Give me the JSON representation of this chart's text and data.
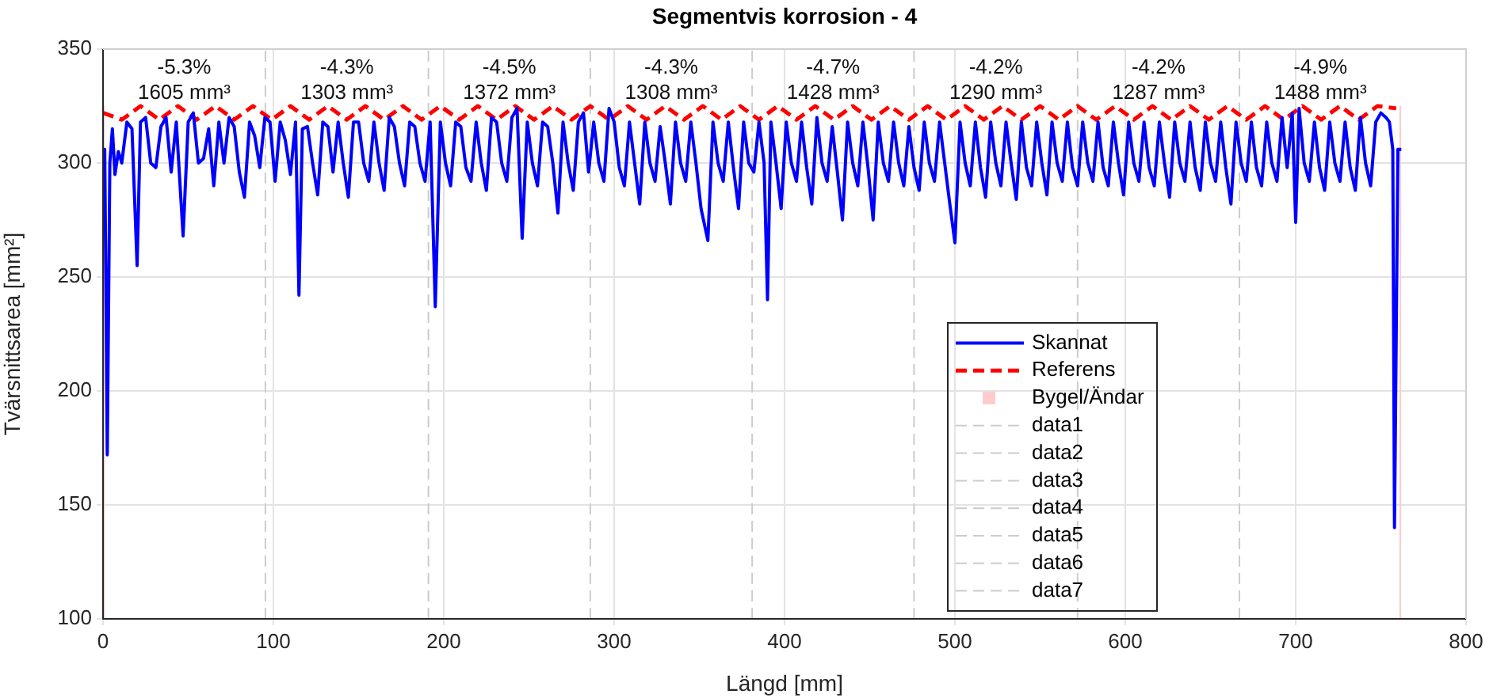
{
  "chart_data": {
    "type": "line",
    "title": "Segmentvis korrosion - 4",
    "xlabel": "Längd [mm]",
    "ylabel": "Tvärsnittsarea [mm²]",
    "xlim": [
      0,
      800
    ],
    "xticks": [
      0,
      100,
      200,
      300,
      400,
      500,
      600,
      700,
      800
    ],
    "ylim": [
      100,
      350
    ],
    "yticks": [
      100,
      150,
      200,
      250,
      300,
      350
    ],
    "grid": true,
    "legend": "bottom right",
    "series": [
      {
        "name": "Skannat",
        "color": "#0000ff",
        "line_style": "solid",
        "x": [
          0,
          1,
          2.5,
          4,
          5.5,
          7,
          9,
          11,
          14,
          17,
          20,
          22,
          25,
          28,
          31,
          34,
          37,
          40,
          43,
          47,
          50,
          53,
          56,
          59,
          62,
          65,
          68,
          71,
          74,
          77,
          80,
          83,
          86,
          89,
          92,
          95,
          98,
          101,
          104,
          107,
          110,
          113,
          115,
          117,
          120,
          123,
          126,
          129,
          132,
          135,
          138,
          141,
          144,
          147,
          150,
          153,
          156,
          159,
          162,
          165,
          168,
          171,
          174,
          177,
          180,
          183,
          186,
          189,
          192,
          195,
          198,
          201,
          204,
          207,
          210,
          213,
          216,
          219,
          222,
          225,
          228,
          231,
          234,
          237,
          240,
          243,
          246,
          249,
          252,
          255,
          258,
          261,
          264,
          267,
          270,
          273,
          276,
          279,
          282,
          285,
          288,
          291,
          294,
          297,
          300,
          303,
          306,
          309,
          312,
          315,
          318,
          321,
          324,
          327,
          330,
          333,
          336,
          339,
          342,
          345,
          348,
          351,
          355,
          358,
          361,
          364,
          367,
          370,
          373,
          376,
          379,
          382,
          385,
          388,
          390,
          392,
          395,
          398,
          401,
          404,
          407,
          410,
          413,
          416,
          419,
          422,
          425,
          428,
          431,
          434,
          437,
          440,
          443,
          446,
          449,
          452,
          455,
          458,
          461,
          464,
          467,
          470,
          473,
          476,
          479,
          482,
          485,
          488,
          491,
          494,
          497,
          500,
          503,
          506,
          509,
          512,
          515,
          518,
          521,
          524,
          527,
          530,
          533,
          536,
          539,
          542,
          545,
          548,
          551,
          554,
          557,
          560,
          563,
          566,
          569,
          572,
          575,
          578,
          581,
          584,
          587,
          590,
          593,
          596,
          599,
          602,
          605,
          608,
          611,
          614,
          617,
          620,
          623,
          626,
          629,
          632,
          635,
          638,
          641,
          644,
          647,
          650,
          653,
          656,
          659,
          662,
          665,
          668,
          671,
          674,
          677,
          680,
          683,
          686,
          689,
          692,
          695,
          698,
          700,
          702,
          705,
          708,
          711,
          714,
          717,
          720,
          723,
          726,
          729,
          732,
          735,
          738,
          741,
          744,
          747,
          750,
          753,
          755,
          757,
          758,
          760,
          762
        ],
        "values": [
          306,
          306,
          172,
          300,
          315,
          295,
          305,
          300,
          318,
          315,
          255,
          318,
          320,
          300,
          298,
          316,
          320,
          296,
          318,
          268,
          318,
          322,
          300,
          302,
          315,
          290,
          318,
          300,
          320,
          316,
          296,
          285,
          318,
          312,
          298,
          320,
          318,
          292,
          318,
          310,
          295,
          318,
          242,
          315,
          316,
          300,
          286,
          318,
          316,
          296,
          318,
          300,
          285,
          318,
          318,
          300,
          292,
          318,
          300,
          288,
          320,
          316,
          300,
          290,
          318,
          316,
          300,
          292,
          318,
          237,
          318,
          300,
          290,
          318,
          316,
          298,
          292,
          318,
          300,
          288,
          320,
          318,
          300,
          292,
          320,
          324,
          267,
          318,
          300,
          290,
          318,
          316,
          300,
          278,
          318,
          300,
          288,
          318,
          322,
          296,
          318,
          300,
          292,
          324,
          318,
          298,
          290,
          318,
          300,
          282,
          318,
          300,
          292,
          316,
          300,
          282,
          318,
          300,
          292,
          318,
          300,
          280,
          266,
          318,
          300,
          292,
          318,
          298,
          280,
          318,
          300,
          296,
          318,
          300,
          240,
          318,
          300,
          280,
          318,
          300,
          292,
          318,
          298,
          282,
          320,
          300,
          292,
          316,
          296,
          275,
          318,
          300,
          290,
          318,
          298,
          275,
          318,
          300,
          292,
          318,
          300,
          290,
          316,
          298,
          288,
          318,
          300,
          292,
          318,
          300,
          282,
          265,
          318,
          300,
          290,
          318,
          298,
          285,
          318,
          300,
          290,
          318,
          300,
          284,
          318,
          298,
          290,
          318,
          300,
          286,
          318,
          300,
          292,
          318,
          298,
          290,
          318,
          300,
          292,
          318,
          298,
          290,
          318,
          300,
          286,
          318,
          300,
          292,
          318,
          298,
          290,
          318,
          300,
          285,
          318,
          300,
          292,
          318,
          298,
          288,
          318,
          300,
          292,
          318,
          298,
          282,
          318,
          300,
          292,
          318,
          298,
          290,
          318,
          300,
          292,
          320,
          298,
          322,
          274,
          324,
          300,
          292,
          318,
          298,
          288,
          318,
          300,
          292,
          318,
          298,
          288,
          320,
          300,
          290,
          318,
          322,
          320,
          318,
          306,
          140,
          306,
          306
        ]
      },
      {
        "name": "Referens",
        "color": "#ff0000",
        "line_style": "dashed",
        "x": [
          0,
          11,
          22,
          33,
          44,
          55,
          66,
          77,
          88,
          99,
          110,
          121,
          132,
          143,
          154,
          165,
          176,
          187,
          198,
          209,
          220,
          231,
          242,
          253,
          264,
          275,
          286,
          297,
          308,
          319,
          330,
          341,
          352,
          363,
          374,
          385,
          396,
          407,
          418,
          429,
          440,
          451,
          462,
          473,
          484,
          495,
          506,
          517,
          528,
          539,
          550,
          561,
          572,
          583,
          594,
          605,
          616,
          627,
          638,
          649,
          660,
          671,
          682,
          693,
          704,
          715,
          726,
          737,
          748,
          759
        ],
        "values": [
          322,
          319,
          325,
          319,
          325,
          319,
          325,
          319,
          325,
          319,
          325,
          319,
          325,
          319,
          325,
          319,
          325,
          319,
          325,
          319,
          325,
          319,
          325,
          319,
          325,
          319,
          325,
          319,
          325,
          319,
          325,
          319,
          325,
          319,
          325,
          319,
          325,
          319,
          325,
          319,
          325,
          319,
          325,
          319,
          325,
          319,
          325,
          319,
          325,
          319,
          325,
          319,
          325,
          319,
          325,
          319,
          325,
          319,
          325,
          319,
          325,
          319,
          325,
          319,
          325,
          319,
          325,
          319,
          325,
          324
        ]
      },
      {
        "name": "Bygel/Ändar",
        "type": "area",
        "color": "#ffcccc",
        "x": [
          0,
          1.2,
          381,
          760.8,
          762
        ],
        "values": [
          325,
          325,
          null,
          325,
          325
        ]
      },
      {
        "name": "data1",
        "color": "#cccccc",
        "line_style": "dashed",
        "x": [
          95.3,
          95.3
        ],
        "values": [
          100,
          350
        ]
      },
      {
        "name": "data2",
        "color": "#cccccc",
        "line_style": "dashed",
        "x": [
          191,
          191
        ],
        "values": [
          100,
          350
        ]
      },
      {
        "name": "data3",
        "color": "#cccccc",
        "line_style": "dashed",
        "x": [
          286,
          286
        ],
        "values": [
          100,
          350
        ]
      },
      {
        "name": "data4",
        "color": "#cccccc",
        "line_style": "dashed",
        "x": [
          381,
          381
        ],
        "values": [
          100,
          350
        ]
      },
      {
        "name": "data5",
        "color": "#cccccc",
        "line_style": "dashed",
        "x": [
          476,
          476
        ],
        "values": [
          100,
          350
        ]
      },
      {
        "name": "data6",
        "color": "#cccccc",
        "line_style": "dashed",
        "x": [
          572,
          572
        ],
        "values": [
          100,
          350
        ]
      },
      {
        "name": "data7",
        "color": "#cccccc",
        "line_style": "dashed",
        "x": [
          667,
          667
        ],
        "values": [
          100,
          350
        ]
      }
    ],
    "annotations": [
      "-5.3%",
      "1605 mm³",
      "-4.3%",
      "1303 mm³",
      "-4.5%",
      "1372 mm³",
      "-4.3%",
      "1308 mm³",
      "-4.7%",
      "1428 mm³",
      "-4.2%",
      "1290 mm³",
      "-4.2%",
      "1287 mm³",
      "-4.9%",
      "1488 mm³"
    ]
  }
}
